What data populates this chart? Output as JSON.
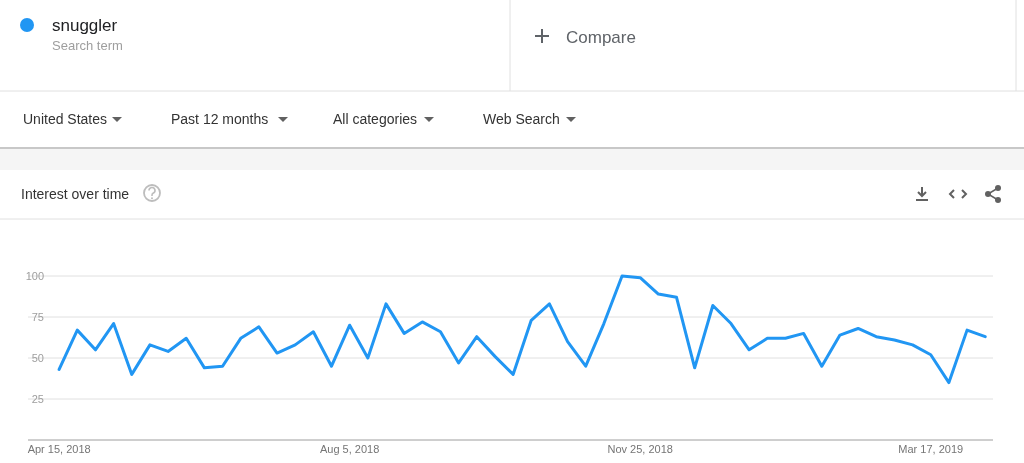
{
  "chart_data": {
    "type": "line",
    "title": "Interest over time",
    "subtitle": "Search term",
    "annotations": [
      "Compare",
      "United States",
      "Past 12 months",
      "All categories",
      "Web Search"
    ],
    "x": [
      "2018-04-15",
      "2018-04-22",
      "2018-04-29",
      "2018-05-06",
      "2018-05-13",
      "2018-05-20",
      "2018-05-27",
      "2018-06-03",
      "2018-06-10",
      "2018-06-17",
      "2018-06-24",
      "2018-07-01",
      "2018-07-08",
      "2018-07-15",
      "2018-07-22",
      "2018-07-29",
      "2018-08-05",
      "2018-08-12",
      "2018-08-19",
      "2018-08-26",
      "2018-09-02",
      "2018-09-09",
      "2018-09-16",
      "2018-09-23",
      "2018-09-30",
      "2018-10-07",
      "2018-10-14",
      "2018-10-21",
      "2018-10-28",
      "2018-11-04",
      "2018-11-11",
      "2018-11-18",
      "2018-11-25",
      "2018-12-02",
      "2018-12-09",
      "2018-12-16",
      "2018-12-23",
      "2018-12-30",
      "2019-01-06",
      "2019-01-13",
      "2019-01-20",
      "2019-01-27",
      "2019-02-03",
      "2019-02-10",
      "2019-02-17",
      "2019-02-24",
      "2019-03-03",
      "2019-03-10",
      "2019-03-17",
      "2019-03-24",
      "2019-03-31",
      "2019-04-07"
    ],
    "series": [
      {
        "name": "snuggler",
        "color": "#2196f3",
        "values": [
          43,
          67,
          55,
          71,
          40,
          58,
          54,
          62,
          44,
          45,
          62,
          69,
          53,
          58,
          66,
          45,
          70,
          50,
          83,
          65,
          72,
          66,
          47,
          63,
          51,
          40,
          73,
          83,
          60,
          45,
          71,
          100,
          99,
          89,
          87,
          44,
          82,
          71,
          55,
          62,
          62,
          65,
          45,
          64,
          68,
          63,
          61,
          58,
          52,
          35,
          67,
          63
        ]
      }
    ],
    "xlim": [
      "2018-04-03",
      "2019-04-10"
    ],
    "xticks": [
      {
        "value": "2018-04-15",
        "label": "Apr 15, 2018"
      },
      {
        "value": "2018-08-05",
        "label": "Aug 5, 2018"
      },
      {
        "value": "2018-11-25",
        "label": "Nov 25, 2018"
      },
      {
        "value": "2019-03-17",
        "label": "Mar 17, 2019"
      }
    ],
    "ylim": [
      0,
      100
    ],
    "yticks": [
      25,
      50,
      75,
      100
    ],
    "grid": "y",
    "legend": "top left",
    "marker": "none",
    "line_style": "solid"
  }
}
